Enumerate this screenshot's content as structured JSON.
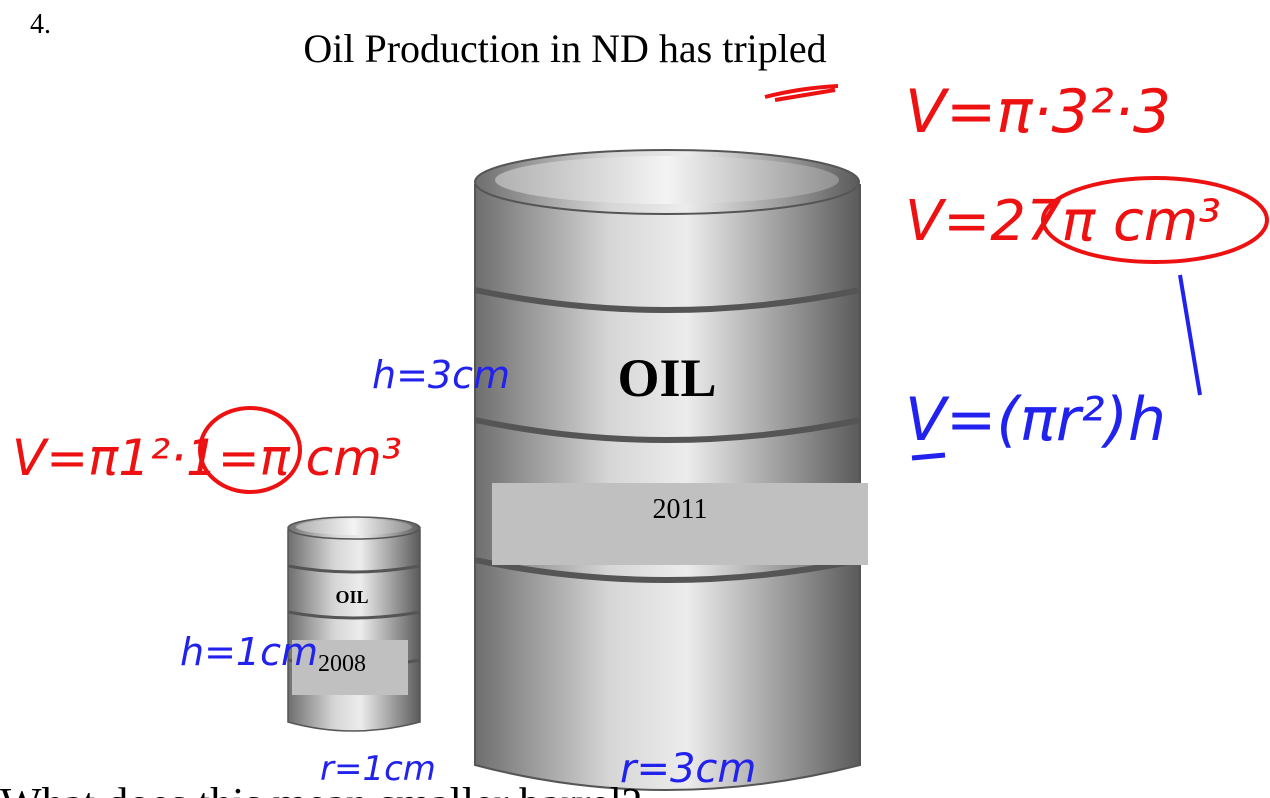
{
  "slide": {
    "number": "4.",
    "title": "Oil Production in ND has tripled",
    "large_barrel": {
      "brand": "OIL",
      "year": "2011"
    },
    "small_barrel": {
      "brand": "OIL",
      "year": "2008"
    },
    "question": "What does this mean smaller barrel?",
    "annotations": {
      "large_volume_step": "V=π·3²·3",
      "large_volume_result": "V=27π cm³",
      "formula": "V=(πr²)h",
      "large_height": "h=3cm",
      "large_radius": "r=3cm",
      "small_volume": "V=π1²·1=π cm³",
      "small_height": "h=1cm",
      "small_radius": "r=1cm"
    }
  }
}
